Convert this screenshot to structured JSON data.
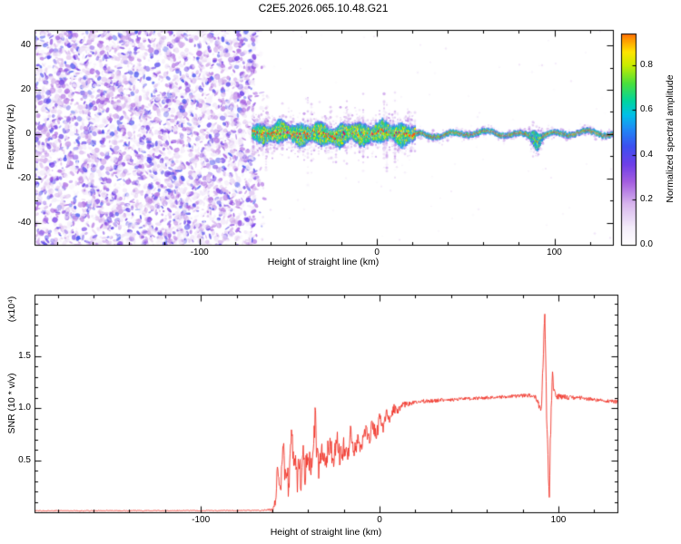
{
  "title": "C2E5.2026.065.10.48.G21",
  "colors": {
    "background": "#ffffff",
    "axis": "#000000",
    "text": "#000000",
    "snr_line": "#f03328",
    "colormap_stops": [
      [
        0.0,
        "#ffffff"
      ],
      [
        0.08,
        "#f3ecfa"
      ],
      [
        0.18,
        "#d9b8ee"
      ],
      [
        0.28,
        "#a55fe0"
      ],
      [
        0.36,
        "#6e3fe8"
      ],
      [
        0.44,
        "#3c50f0"
      ],
      [
        0.52,
        "#1e8cf5"
      ],
      [
        0.58,
        "#00c0e8"
      ],
      [
        0.64,
        "#00d4a0"
      ],
      [
        0.72,
        "#4ae03c"
      ],
      [
        0.8,
        "#c8ec00"
      ],
      [
        0.86,
        "#ffe400"
      ],
      [
        0.92,
        "#ff9000"
      ],
      [
        0.97,
        "#ff3214"
      ],
      [
        1.0,
        "#e60064"
      ]
    ]
  },
  "chart_data": [
    {
      "type": "heatmap",
      "name": "spectrogram",
      "xlabel": "Height of straight line (km)",
      "ylabel": "Frequency (Hz)",
      "x_range": [
        -193,
        133
      ],
      "y_range": [
        -50,
        47
      ],
      "x_ticks": {
        "values": [
          -100,
          0,
          100
        ],
        "labels": [
          "-100",
          "0",
          "100"
        ],
        "minor_step": 20
      },
      "y_ticks": {
        "values": [
          -40,
          -20,
          0,
          20,
          40
        ],
        "labels": [
          "-40",
          "-20",
          "0",
          "20",
          "40"
        ],
        "minor_step": 10
      },
      "colorbar": {
        "label": "Normalized spectral amplitude",
        "ticks": [
          0,
          0.2,
          0.4,
          0.6,
          0.8
        ],
        "tick_labels": [
          "0.0",
          "0.2",
          "0.4",
          "0.6",
          "0.8"
        ],
        "range": [
          0,
          0.94
        ]
      },
      "features": {
        "noise_region": {
          "x_min": -193,
          "x_max": -70,
          "value_min": 0.06,
          "value_max": 0.44,
          "description": "random purple speckle noise filling the full frequency range below -70 km"
        },
        "band": {
          "center_hz": 0,
          "wide_from_km": -70,
          "wide_half_width_hz": 3.2,
          "narrow_from_km": 22,
          "narrow_half_width_hz": 0.9,
          "disturbance_x_km": 90,
          "disturbance_extra_hz": 3,
          "peak_value": 1.0,
          "description": "high-amplitude horizontal band at 0 Hz starting near -70 km, wide speckled green/yellow with red core and purple halo until ~22 km, then thin red/green line to the right edge with a widened cyan disturbance near 90 km"
        }
      }
    },
    {
      "type": "line",
      "name": "snr",
      "xlabel": "Height of straight line (km)",
      "ylabel": "SNR (10 * v/v)",
      "scale_note": "(x10⁴)",
      "x_range": [
        -193,
        133
      ],
      "y_range": [
        0,
        2.09
      ],
      "x_ticks": {
        "values": [
          -100,
          0,
          100
        ],
        "labels": [
          "-100",
          "0",
          "100"
        ],
        "minor_step": 20
      },
      "y_ticks": {
        "values": [
          0.5,
          1.0,
          1.5
        ],
        "labels": [
          "0.5",
          "1.0",
          "1.5"
        ],
        "minor_step": 0.1
      },
      "series": [
        {
          "name": "SNR",
          "color": "#f03328",
          "envelope": [
            [
              -193,
              0.015
            ],
            [
              -130,
              0.015
            ],
            [
              -90,
              0.016
            ],
            [
              -66,
              0.018
            ],
            [
              -60,
              0.03
            ],
            [
              -58,
              0.12
            ],
            [
              -57,
              0.5
            ],
            [
              -56,
              0.2
            ],
            [
              -55,
              0.32
            ],
            [
              -54,
              0.72
            ],
            [
              -53,
              0.28
            ],
            [
              -52,
              0.4
            ],
            [
              -51,
              0.25
            ],
            [
              -50,
              0.48
            ],
            [
              -49,
              0.88
            ],
            [
              -48,
              0.32
            ],
            [
              -47,
              0.5
            ],
            [
              -46,
              0.28
            ],
            [
              -45,
              0.55
            ],
            [
              -44,
              0.3
            ],
            [
              -43,
              0.62
            ],
            [
              -42,
              0.35
            ],
            [
              -40,
              0.52
            ],
            [
              -38,
              0.38
            ],
            [
              -36,
              0.95
            ],
            [
              -35,
              0.5
            ],
            [
              -34,
              0.42
            ],
            [
              -32,
              0.6
            ],
            [
              -30,
              0.45
            ],
            [
              -28,
              0.68
            ],
            [
              -26,
              0.5
            ],
            [
              -24,
              0.72
            ],
            [
              -22,
              0.5
            ],
            [
              -20,
              0.65
            ],
            [
              -18,
              0.52
            ],
            [
              -16,
              0.78
            ],
            [
              -14,
              0.58
            ],
            [
              -12,
              0.72
            ],
            [
              -10,
              0.62
            ],
            [
              -8,
              0.82
            ],
            [
              -6,
              0.68
            ],
            [
              -4,
              0.86
            ],
            [
              -2,
              0.72
            ],
            [
              0,
              0.9
            ],
            [
              2,
              0.8
            ],
            [
              4,
              0.95
            ],
            [
              6,
              0.88
            ],
            [
              8,
              1.0
            ],
            [
              10,
              0.96
            ],
            [
              12,
              1.02
            ],
            [
              15,
              1.04
            ],
            [
              18,
              1.05
            ],
            [
              22,
              1.06
            ],
            [
              26,
              1.07
            ],
            [
              30,
              1.07
            ],
            [
              35,
              1.08
            ],
            [
              40,
              1.08
            ],
            [
              50,
              1.09
            ],
            [
              60,
              1.1
            ],
            [
              70,
              1.11
            ],
            [
              80,
              1.12
            ],
            [
              84,
              1.12
            ],
            [
              87,
              1.1
            ],
            [
              89,
              1.04
            ],
            [
              90.5,
              1.0
            ],
            [
              91.5,
              1.45
            ],
            [
              92.3,
              1.92
            ],
            [
              93.2,
              1.1
            ],
            [
              94.2,
              0.5
            ],
            [
              94.8,
              0.13
            ],
            [
              95.6,
              0.75
            ],
            [
              96.4,
              1.32
            ],
            [
              97.5,
              1.18
            ],
            [
              99,
              1.13
            ],
            [
              102,
              1.11
            ],
            [
              106,
              1.1
            ],
            [
              112,
              1.1
            ],
            [
              120,
              1.08
            ],
            [
              127,
              1.07
            ],
            [
              133,
              1.06
            ]
          ],
          "noise_amplitude": [
            [
              -193,
              0.004
            ],
            [
              -70,
              0.004
            ],
            [
              -62,
              0.006
            ],
            [
              -58,
              0.05
            ],
            [
              -54,
              0.12
            ],
            [
              -48,
              0.14
            ],
            [
              -42,
              0.13
            ],
            [
              -35,
              0.14
            ],
            [
              -28,
              0.12
            ],
            [
              -20,
              0.11
            ],
            [
              -12,
              0.09
            ],
            [
              -5,
              0.08
            ],
            [
              0,
              0.06
            ],
            [
              5,
              0.05
            ],
            [
              10,
              0.035
            ],
            [
              15,
              0.025
            ],
            [
              20,
              0.02
            ],
            [
              30,
              0.018
            ],
            [
              50,
              0.016
            ],
            [
              70,
              0.016
            ],
            [
              85,
              0.02
            ],
            [
              89,
              0.04
            ],
            [
              92,
              0.1
            ],
            [
              95,
              0.12
            ],
            [
              98,
              0.05
            ],
            [
              102,
              0.025
            ],
            [
              110,
              0.018
            ],
            [
              133,
              0.018
            ]
          ]
        }
      ]
    }
  ]
}
